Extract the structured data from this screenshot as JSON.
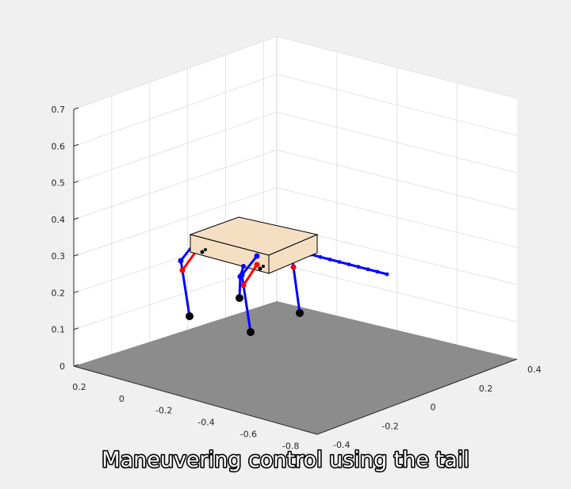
{
  "chart_data": {
    "type": "3d-plot",
    "title": "",
    "xlabel": "",
    "ylabel": "",
    "zlabel": "",
    "zlim": [
      0,
      0.7
    ],
    "z_ticks": [
      "0",
      "0.1",
      "0.2",
      "0.3",
      "0.4",
      "0.5",
      "0.6",
      "0.7"
    ],
    "x_ticks": [
      "0.2",
      "0",
      "-0.2",
      "-0.4",
      "-0.6",
      "-0.8"
    ],
    "y_ticks": [
      "-0.4",
      "-0.2",
      "0",
      "0.2",
      "0.4"
    ],
    "grid": true,
    "ground_color": "#8c8c8c",
    "body_color": "#f5dfc2",
    "leg_upper_color": "#0000ff",
    "leg_lower_color": "#ff0000",
    "tail_color": "#0000ff",
    "foot_color": "#000000"
  },
  "caption": "Maneuvering control using the tail"
}
